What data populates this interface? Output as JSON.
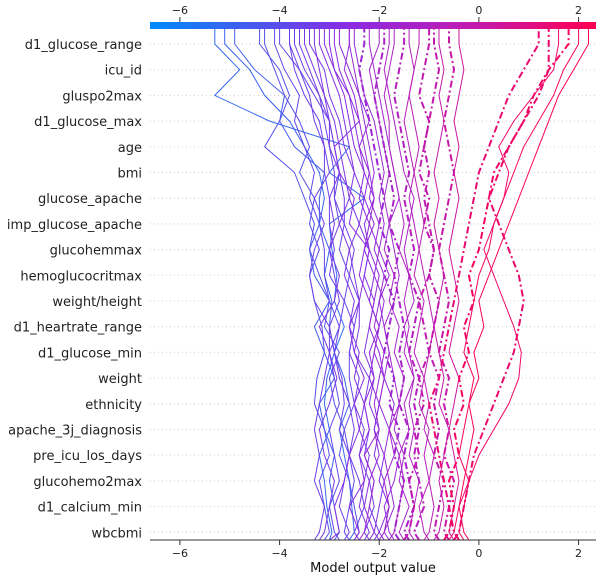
{
  "chart_data": {
    "type": "line",
    "chart_kind": "shap-decision-plot",
    "xlabel": "Model output value",
    "ylabel": "",
    "xlim": [
      -6.6,
      2.35
    ],
    "x_ticks": [
      -6,
      -4,
      -2,
      0,
      2
    ],
    "x_tick_labels": [
      "−6",
      "−4",
      "−2",
      "0",
      "2"
    ],
    "features": [
      "d1_glucose_range",
      "icu_id",
      "gluspo2max",
      "d1_glucose_max",
      "age",
      "bmi",
      "glucose_apache",
      "imp_glucose_apache",
      "glucohemmax",
      "hemoglucocritmax",
      "weight/height",
      "d1_heartrate_range",
      "d1_glucose_min",
      "weight",
      "ethnicity",
      "apache_3j_diagnosis",
      "pre_icu_los_days",
      "glucohemo2max",
      "d1_calcium_min",
      "wbcbmi"
    ],
    "base_value": -0.7,
    "colormap": [
      "#008afb",
      "#8a2be2",
      "#c01ab0",
      "#ff0052"
    ],
    "grid": "dotted-horizontal",
    "highlighted_style": "dash-dot",
    "series": [
      {
        "values": [
          -3.0,
          -2.95,
          -3.05,
          -3.1,
          -3.2,
          -3.0,
          -3.1,
          -3.05,
          -2.9,
          -2.7,
          -2.9,
          -2.85,
          -2.95,
          -3.0,
          -2.3,
          -3.0,
          -2.6,
          -4.2,
          -5.3,
          -4.8,
          -5.3
        ]
      },
      {
        "values": [
          -2.9,
          -2.8,
          -2.9,
          -3.0,
          -2.9,
          -3.1,
          -3.2,
          -2.9,
          -3.1,
          -3.3,
          -3.0,
          -3.3,
          -3.4,
          -3.2,
          -3.2,
          -3.1,
          -3.7,
          -4.0,
          -3.9,
          -4.5,
          -4.9
        ]
      },
      {
        "values": [
          -2.6,
          -2.5,
          -2.55,
          -2.6,
          -2.7,
          -2.8,
          -2.6,
          -2.7,
          -2.9,
          -3.0,
          -2.95,
          -3.1,
          -3.0,
          -3.2,
          -3.1,
          -3.2,
          -3.5,
          -3.8,
          -4.3,
          -4.6,
          -5.1
        ]
      },
      {
        "values": [
          -2.5,
          -2.4,
          -2.5,
          -2.6,
          -2.8,
          -2.7,
          -2.9,
          -3.0,
          -2.8,
          -3.1,
          -3.0,
          -3.2,
          -3.4,
          -3.3,
          -3.5,
          -3.7,
          -4.3,
          -4.0,
          -3.8,
          -4.0,
          -4.4
        ]
      },
      {
        "values": [
          -3.1,
          -3.0,
          -3.1,
          -3.2,
          -3.0,
          -3.1,
          -3.3,
          -3.25,
          -3.1,
          -3.15,
          -3.3,
          -3.4,
          -3.2,
          -3.4,
          -3.3,
          -3.6,
          -3.4,
          -3.6,
          -3.9,
          -4.1,
          -4.3
        ]
      },
      {
        "values": [
          -2.8,
          -2.9,
          -3.0,
          -2.8,
          -2.9,
          -3.0,
          -2.8,
          -2.9,
          -3.0,
          -2.8,
          -3.0,
          -3.1,
          -3.1,
          -3.2,
          -3.4,
          -3.3,
          -3.5,
          -3.7,
          -3.6,
          -3.9,
          -4.1
        ]
      },
      {
        "values": [
          -2.7,
          -2.6,
          -2.8,
          -2.7,
          -2.6,
          -2.8,
          -2.7,
          -2.75,
          -2.9,
          -2.8,
          -2.7,
          -3.0,
          -2.9,
          -3.0,
          -3.0,
          -3.1,
          -3.1,
          -3.2,
          -3.5,
          -3.7,
          -3.8
        ]
      },
      {
        "values": [
          -3.2,
          -3.1,
          -3.0,
          -2.9,
          -3.1,
          -3.2,
          -3.0,
          -2.85,
          -3.0,
          -3.2,
          -2.9,
          -2.8,
          -3.0,
          -2.9,
          -3.0,
          -2.8,
          -3.0,
          -3.0,
          -3.1,
          -3.3,
          -3.5
        ]
      },
      {
        "values": [
          -2.6,
          -2.7,
          -2.6,
          -2.5,
          -2.6,
          -2.7,
          -2.5,
          -2.6,
          -2.6,
          -2.5,
          -2.7,
          -2.6,
          -2.8,
          -2.7,
          -2.9,
          -2.8,
          -2.9,
          -3.0,
          -3.3,
          -3.6,
          -4.0
        ]
      },
      {
        "values": [
          -2.4,
          -2.5,
          -2.3,
          -2.4,
          -2.6,
          -2.5,
          -2.6,
          -2.8,
          -2.9,
          -3.0,
          -2.8,
          -2.9,
          -3.0,
          -2.8,
          -2.9,
          -2.9,
          -3.0,
          -3.1,
          -3.2,
          -3.5,
          -3.7
        ]
      },
      {
        "values": [
          -3.3,
          -3.2,
          -3.1,
          -3.3,
          -3.2,
          -3.3,
          -3.2,
          -3.1,
          -3.0,
          -3.0,
          -3.3,
          -3.4,
          -3.3,
          -3.1,
          -3.3,
          -3.0,
          -3.1,
          -3.3,
          -3.4,
          -3.6,
          -3.8
        ]
      },
      {
        "values": [
          -2.2,
          -2.3,
          -2.1,
          -2.2,
          -2.4,
          -2.3,
          -2.5,
          -2.4,
          -2.6,
          -2.5,
          -2.4,
          -2.6,
          -2.5,
          -2.7,
          -2.7,
          -2.8,
          -2.9,
          -3.0,
          -3.2,
          -3.4,
          -3.6
        ]
      },
      {
        "values": [
          -2.3,
          -2.2,
          -2.4,
          -2.3,
          -2.2,
          -2.4,
          -2.3,
          -2.5,
          -2.4,
          -2.6,
          -2.5,
          -2.7,
          -2.6,
          -2.8,
          -2.6,
          -2.7,
          -2.8,
          -2.9,
          -3.1,
          -3.2,
          -3.3
        ]
      },
      {
        "values": [
          -2.1,
          -2.0,
          -2.2,
          -2.1,
          -2.3,
          -2.2,
          -2.3,
          -2.2,
          -2.5,
          -2.4,
          -2.4,
          -2.5,
          -2.6,
          -2.4,
          -2.6,
          -2.5,
          -2.7,
          -2.8,
          -3.0,
          -3.1,
          -3.4
        ]
      },
      {
        "values": [
          -3.0,
          -2.8,
          -2.9,
          -2.7,
          -2.6,
          -2.4,
          -2.5,
          -2.3,
          -2.5,
          -2.6,
          -2.4,
          -2.3,
          -2.2,
          -2.6,
          -2.5,
          -2.8,
          -2.9,
          -2.4,
          -2.6,
          -2.9,
          -3.1
        ]
      },
      {
        "values": [
          -2.0,
          -2.1,
          -2.0,
          -1.9,
          -2.1,
          -2.0,
          -2.2,
          -2.1,
          -2.3,
          -2.2,
          -2.1,
          -2.3,
          -2.2,
          -2.4,
          -2.3,
          -2.5,
          -2.6,
          -2.7,
          -2.8,
          -3.0,
          -3.2
        ]
      },
      {
        "values": [
          -1.9,
          -2.0,
          -1.8,
          -2.0,
          -1.9,
          -2.1,
          -2.0,
          -2.2,
          -2.1,
          -2.0,
          -2.2,
          -2.1,
          -2.3,
          -2.2,
          -2.4,
          -2.3,
          -2.5,
          -2.6,
          -2.7,
          -2.9,
          -3.0
        ]
      },
      {
        "values": [
          -2.5,
          -2.4,
          -2.6,
          -2.3,
          -2.4,
          -2.2,
          -2.3,
          -2.1,
          -2.2,
          -2.0,
          -2.2,
          -2.4,
          -2.3,
          -2.1,
          -2.3,
          -2.2,
          -2.4,
          -2.5,
          -2.6,
          -2.8,
          -2.9
        ]
      },
      {
        "values": [
          -2.2,
          -2.1,
          -2.3,
          -2.2,
          -2.0,
          -2.1,
          -2.0,
          -1.9,
          -2.0,
          -2.2,
          -2.1,
          -2.0,
          -2.2,
          -2.3,
          -2.1,
          -2.3,
          -2.4,
          -2.2,
          -2.4,
          -2.6,
          -2.8
        ]
      },
      {
        "values": [
          -1.8,
          -1.9,
          -1.7,
          -1.8,
          -1.9,
          -1.8,
          -2.0,
          -1.9,
          -2.1,
          -2.0,
          -1.9,
          -2.1,
          -2.0,
          -2.2,
          -2.1,
          -2.2,
          -2.3,
          -2.4,
          -2.5,
          -2.7,
          -2.6
        ]
      },
      {
        "values": [
          -1.7,
          -1.8,
          -1.9,
          -1.7,
          -1.6,
          -1.8,
          -1.7,
          -1.9,
          -1.8,
          -1.9,
          -2.0,
          -1.9,
          -2.1,
          -2.0,
          -2.2,
          -2.1,
          -2.2,
          -2.3,
          -2.4,
          -2.5,
          -2.6
        ]
      },
      {
        "values": [
          -2.4,
          -2.3,
          -2.2,
          -2.1,
          -2.3,
          -2.0,
          -2.1,
          -2.0,
          -1.9,
          -2.1,
          -2.0,
          -1.8,
          -2.0,
          -1.9,
          -2.0,
          -1.9,
          -2.0,
          -2.1,
          -2.3,
          -2.4,
          -2.5
        ]
      },
      {
        "values": [
          -1.6,
          -1.7,
          -1.6,
          -1.5,
          -1.7,
          -1.6,
          -1.8,
          -1.7,
          -1.9,
          -1.8,
          -1.7,
          -1.9,
          -1.8,
          -2.0,
          -1.9,
          -2.0,
          -2.1,
          -2.2,
          -2.3,
          -2.4,
          -2.3
        ]
      },
      {
        "values": [
          -1.5,
          -1.6,
          -1.4,
          -1.6,
          -1.5,
          -1.7,
          -1.6,
          -1.5,
          -1.7,
          -1.6,
          -1.8,
          -1.7,
          -1.9,
          -1.8,
          -1.9,
          -1.8,
          -1.9,
          -2.0,
          -2.1,
          -2.2,
          -2.0
        ]
      },
      {
        "values": [
          -2.0,
          -1.9,
          -1.8,
          -1.9,
          -1.7,
          -1.8,
          -1.6,
          -1.7,
          -1.8,
          -1.9,
          -1.7,
          -1.6,
          -1.7,
          -1.8,
          -1.6,
          -1.7,
          -1.8,
          -1.9,
          -2.0,
          -2.1,
          -2.2
        ]
      },
      {
        "values": [
          -1.4,
          -1.5,
          -1.3,
          -1.4,
          -1.5,
          -1.4,
          -1.6,
          -1.5,
          -1.6,
          -1.5,
          -1.6,
          -1.7,
          -1.6,
          -1.8,
          -1.7,
          -1.8,
          -1.9,
          -2.0,
          -2.1,
          -2.0,
          -1.9
        ]
      },
      {
        "values": [
          -1.3,
          -1.4,
          -1.3,
          -1.2,
          -1.4,
          -1.3,
          -1.4,
          -1.3,
          -1.5,
          -1.4,
          -1.5,
          -1.4,
          -1.6,
          -1.5,
          -1.6,
          -1.7,
          -1.8,
          -1.8,
          -1.9,
          -1.8,
          -1.7
        ]
      },
      {
        "values": [
          -1.8,
          -1.7,
          -1.6,
          -1.5,
          -1.6,
          -1.4,
          -1.5,
          -1.3,
          -1.4,
          -1.5,
          -1.3,
          -1.4,
          -1.5,
          -1.4,
          -1.3,
          -1.5,
          -1.6,
          -1.7,
          -1.8,
          -1.9,
          -1.8
        ]
      },
      {
        "values": [
          -1.2,
          -1.3,
          -1.1,
          -1.2,
          -1.3,
          -1.2,
          -1.3,
          -1.2,
          -1.4,
          -1.3,
          -1.2,
          -1.4,
          -1.3,
          -1.4,
          -1.5,
          -1.4,
          -1.5,
          -1.6,
          -1.7,
          -1.6,
          -1.5
        ]
      },
      {
        "values": [
          -1.0,
          -1.1,
          -1.2,
          -1.0,
          -1.1,
          -1.0,
          -1.2,
          -1.1,
          -1.3,
          -1.2,
          -1.1,
          -1.3,
          -1.2,
          -1.3,
          -1.4,
          -1.3,
          -1.4,
          -1.5,
          -1.4,
          -1.3,
          -1.4
        ]
      },
      {
        "values": [
          -1.1,
          -1.0,
          -0.9,
          -1.0,
          -0.9,
          -1.1,
          -1.0,
          -1.1,
          -1.0,
          -0.9,
          -1.0,
          -1.1,
          -1.2,
          -1.1,
          -1.2,
          -1.3,
          -1.2,
          -1.3,
          -1.4,
          -1.3,
          -1.2
        ]
      },
      {
        "values": [
          -1.5,
          -1.4,
          -1.3,
          -1.4,
          -1.2,
          -1.3,
          -1.1,
          -1.2,
          -1.0,
          -1.1,
          -1.2,
          -1.0,
          -0.9,
          -1.1,
          -1.0,
          -1.2,
          -1.1,
          -1.0,
          -1.2,
          -1.1,
          -1.0
        ]
      },
      {
        "values": [
          -0.8,
          -0.9,
          -0.8,
          -0.7,
          -0.9,
          -0.8,
          -0.9,
          -0.8,
          -1.0,
          -0.9,
          -0.8,
          -1.0,
          -0.9,
          -1.0,
          -1.1,
          -1.0,
          -1.1,
          -1.0,
          -0.9,
          -0.8,
          -0.9
        ]
      },
      {
        "values": [
          -0.9,
          -0.8,
          -0.7,
          -0.8,
          -0.7,
          -0.6,
          -0.8,
          -0.7,
          -0.8,
          -0.9,
          -0.8,
          -0.7,
          -0.8,
          -0.9,
          -0.8,
          -0.9,
          -0.8,
          -0.7,
          -0.8,
          -0.7,
          -0.8
        ]
      },
      {
        "values": [
          -0.6,
          -0.7,
          -0.6,
          -0.5,
          -0.7,
          -0.6,
          -0.7,
          -0.6,
          -0.8,
          -0.7,
          -0.6,
          -0.7,
          -0.8,
          -0.7,
          -0.6,
          -0.5,
          -0.6,
          -0.7,
          -0.6,
          -0.5,
          -0.6
        ]
      },
      {
        "values": [
          -0.5,
          -0.6,
          -0.5,
          -0.4,
          -0.5,
          -0.6,
          -0.5,
          -0.4,
          -0.6,
          -0.5,
          -0.4,
          -0.5,
          -0.6,
          -0.5,
          -0.4,
          -0.5,
          -0.4,
          -0.5,
          -0.4,
          -0.3,
          -0.4
        ]
      },
      {
        "values": [
          -0.4,
          -0.5,
          -0.6,
          -0.7,
          -0.8,
          -0.9,
          -1.0,
          -0.8,
          -0.7,
          -0.6,
          -0.5,
          -0.4,
          -0.3,
          -0.2,
          -0.1,
          0.0,
          0.2,
          0.4,
          0.6,
          0.9,
          1.2
        ]
      },
      {
        "values": [
          -0.7,
          -0.6,
          -0.5,
          -0.6,
          -0.4,
          -0.5,
          -0.3,
          -0.4,
          -0.2,
          -0.3,
          -0.1,
          -0.2,
          0.0,
          0.1,
          0.2,
          0.4,
          0.6,
          0.9,
          1.1,
          1.4,
          1.8
        ]
      },
      {
        "values": [
          -0.3,
          -0.4,
          -0.3,
          -0.2,
          -0.4,
          -0.3,
          -0.2,
          -0.1,
          -0.3,
          -0.2,
          -0.1,
          0.0,
          0.2,
          0.3,
          0.5,
          0.7,
          0.9,
          1.2,
          1.5,
          1.7,
          2.0
        ]
      },
      {
        "values": [
          -0.2,
          -0.3,
          -0.4,
          -0.3,
          -0.2,
          -0.1,
          -0.2,
          0.0,
          -0.1,
          0.1,
          0.0,
          0.2,
          0.4,
          0.6,
          0.8,
          1.0,
          1.2,
          1.4,
          1.6,
          1.9,
          2.2
        ]
      },
      {
        "values": [
          -0.5,
          -0.4,
          -0.3,
          -0.2,
          -0.1,
          0.1,
          0.3,
          0.5,
          0.7,
          0.8,
          0.9,
          0.8,
          0.6,
          0.4,
          0.2,
          0.3,
          0.6,
          0.9,
          1.2,
          1.4,
          1.4
        ]
      },
      {
        "values": [
          -0.6,
          -0.5,
          -0.4,
          -0.2,
          0.0,
          0.3,
          0.6,
          0.8,
          0.85,
          0.7,
          0.5,
          0.3,
          0.1,
          0.3,
          0.5,
          0.6,
          0.4,
          0.7,
          1.1,
          1.5,
          1.6
        ]
      }
    ]
  }
}
